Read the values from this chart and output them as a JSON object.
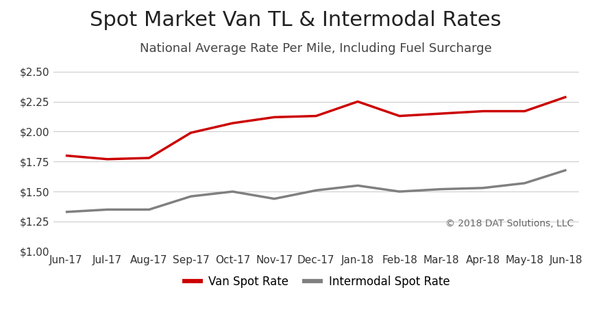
{
  "title": "Spot Market Van TL & Intermodal Rates",
  "subtitle": "National Average Rate Per Mile, Including Fuel Surcharge",
  "copyright": "© 2018 DAT Solutions, LLC",
  "categories": [
    "Jun-17",
    "Jul-17",
    "Aug-17",
    "Sep-17",
    "Oct-17",
    "Nov-17",
    "Dec-17",
    "Jan-18",
    "Feb-18",
    "Mar-18",
    "Apr-18",
    "May-18",
    "Jun-18"
  ],
  "van_rates": [
    1.8,
    1.77,
    1.78,
    1.99,
    2.07,
    2.12,
    2.13,
    2.25,
    2.13,
    2.15,
    2.17,
    2.17,
    2.29
  ],
  "intermodal_rates": [
    1.33,
    1.35,
    1.35,
    1.46,
    1.5,
    1.44,
    1.51,
    1.55,
    1.5,
    1.52,
    1.53,
    1.57,
    1.68
  ],
  "van_color": "#CC0000",
  "intermodal_color": "#808080",
  "background_color": "#FFFFFF",
  "grid_color": "#CCCCCC",
  "ylim": [
    1.0,
    2.6
  ],
  "yticks": [
    1.0,
    1.25,
    1.5,
    1.75,
    2.0,
    2.25,
    2.5
  ],
  "title_fontsize": 22,
  "subtitle_fontsize": 13,
  "legend_fontsize": 12,
  "tick_fontsize": 11,
  "copyright_fontsize": 10,
  "line_width": 2.5
}
